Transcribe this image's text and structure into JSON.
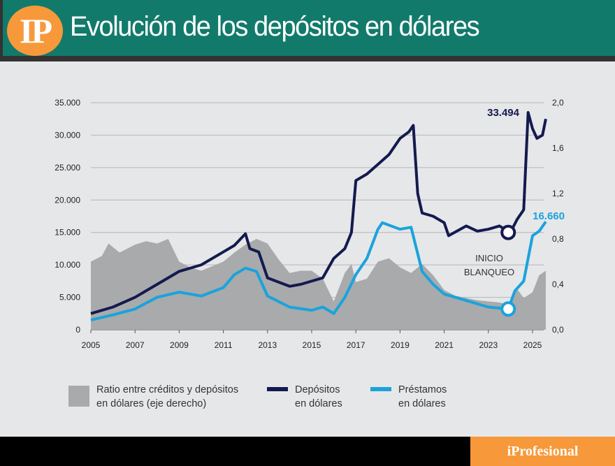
{
  "header": {
    "logo": "IP",
    "title": "Evolución de los depósitos en dólares"
  },
  "footer": {
    "brand": "iProfesional"
  },
  "colors": {
    "header": "#127a6b",
    "accent": "#f7993a",
    "deposits": "#141a4e",
    "loans": "#1aa3dc",
    "ratio": "#a9aaac"
  },
  "chart_data": {
    "type": "line",
    "x_ticks": [
      "2005",
      "2007",
      "2009",
      "2011",
      "2013",
      "2015",
      "2017",
      "2019",
      "2021",
      "2023",
      "2025"
    ],
    "y_left": {
      "range": [
        0,
        35000
      ],
      "ticks": [
        "0",
        "5.000",
        "10.000",
        "15.000",
        "20.000",
        "25.000",
        "30.000",
        "35.000"
      ]
    },
    "y_right": {
      "range": [
        0,
        2.0
      ],
      "ticks": [
        "0,0",
        "0,4",
        "0,8",
        "1,2",
        "1,6",
        "2,0"
      ]
    },
    "grid": true,
    "legend_position": "bottom",
    "series": [
      {
        "name": "Ratio entre créditos y depósitos en dólares (eje derecho)",
        "type": "area",
        "axis": "right",
        "x": [
          2005,
          2005.5,
          2005.8,
          2006.3,
          2007,
          2007.5,
          2008,
          2008.5,
          2009,
          2009.5,
          2010,
          2010.5,
          2011,
          2011.5,
          2012,
          2012.5,
          2013,
          2013.5,
          2014,
          2014.5,
          2015,
          2015.5,
          2016,
          2016.5,
          2016.8,
          2017,
          2017.5,
          2018,
          2018.5,
          2019,
          2019.5,
          2020,
          2020.5,
          2021,
          2021.5,
          2022,
          2022.5,
          2023,
          2023.5,
          2024,
          2024.3,
          2024.6,
          2025,
          2025.3,
          2025.6
        ],
        "y": [
          0.6,
          0.65,
          0.76,
          0.68,
          0.75,
          0.78,
          0.76,
          0.8,
          0.6,
          0.55,
          0.52,
          0.56,
          0.6,
          0.68,
          0.75,
          0.8,
          0.76,
          0.62,
          0.5,
          0.52,
          0.52,
          0.45,
          0.25,
          0.5,
          0.58,
          0.42,
          0.45,
          0.6,
          0.63,
          0.55,
          0.5,
          0.58,
          0.48,
          0.35,
          0.3,
          0.28,
          0.26,
          0.25,
          0.24,
          0.22,
          0.36,
          0.28,
          0.33,
          0.48,
          0.52
        ]
      },
      {
        "name": "Depósitos en dólares",
        "type": "line",
        "axis": "left",
        "x": [
          2005,
          2006,
          2007,
          2008,
          2009,
          2010,
          2011,
          2011.5,
          2012,
          2012.2,
          2012.6,
          2013,
          2014,
          2014.5,
          2015,
          2015.5,
          2016,
          2016.5,
          2016.8,
          2017,
          2017.5,
          2018,
          2018.5,
          2019,
          2019.4,
          2019.6,
          2019.8,
          2020,
          2020.5,
          2021,
          2021.2,
          2022,
          2022.5,
          2023,
          2023.5,
          2024,
          2024.3,
          2024.6,
          2024.8,
          2025,
          2025.2,
          2025.45,
          2025.6
        ],
        "y": [
          2500,
          3500,
          5000,
          7000,
          9000,
          10000,
          12000,
          13000,
          14800,
          12500,
          12000,
          8000,
          6700,
          7000,
          7500,
          8000,
          11000,
          12500,
          15000,
          23000,
          24000,
          25500,
          27000,
          29500,
          30500,
          31500,
          21000,
          18000,
          17500,
          16500,
          14500,
          16000,
          15200,
          15500,
          16000,
          15000,
          17000,
          18500,
          33494,
          31000,
          29500,
          30000,
          32500
        ],
        "annotation": "33.494"
      },
      {
        "name": "Préstamos en dólares",
        "type": "line",
        "axis": "left",
        "x": [
          2005,
          2006,
          2007,
          2008,
          2009,
          2010,
          2011,
          2011.5,
          2012,
          2012.5,
          2013,
          2014,
          2015,
          2015.5,
          2016,
          2016.5,
          2017,
          2017.5,
          2018,
          2018.2,
          2019,
          2019.5,
          2020,
          2020.5,
          2021,
          2022,
          2023,
          2023.9,
          2024.2,
          2024.6,
          2025,
          2025.3,
          2025.6
        ],
        "y": [
          1500,
          2300,
          3200,
          5000,
          5800,
          5200,
          6500,
          8500,
          9500,
          9000,
          5200,
          3500,
          3000,
          3500,
          2500,
          5000,
          8500,
          11000,
          15500,
          16500,
          15500,
          15800,
          9000,
          7000,
          5500,
          4500,
          3500,
          3200,
          6000,
          7500,
          14500,
          15200,
          16660
        ],
        "annotation": "16.660"
      }
    ],
    "annotations": [
      "INICIO",
      "BLANQUEO"
    ]
  },
  "legend": [
    {
      "line1": "Ratio entre créditos y depósitos",
      "line2": "en dólares (eje derecho)"
    },
    {
      "line1": "Depósitos",
      "line2": "en dólares"
    },
    {
      "line1": "Préstamos",
      "line2": "en dólares"
    }
  ]
}
